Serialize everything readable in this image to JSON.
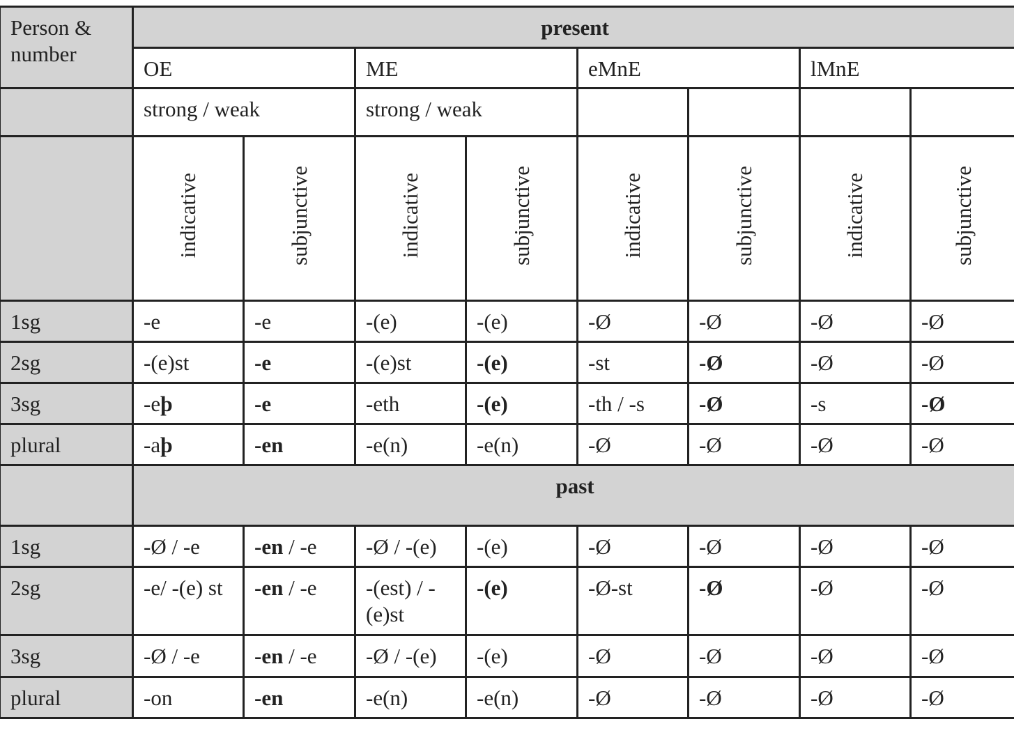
{
  "header": {
    "person_number": "Person & number",
    "present": "present",
    "past": "past",
    "periods": [
      "OE",
      "ME",
      "eMnE",
      "lMnE"
    ],
    "verb_class": [
      "strong / weak",
      "strong / weak"
    ],
    "moods": [
      "indicative",
      "subjunctive",
      "indicative",
      "subjunctive",
      "indicative",
      "subjunctive",
      "indicative",
      "subjunctive"
    ]
  },
  "present_rows": [
    {
      "label": "1sg",
      "cells": [
        [
          {
            "t": "-e"
          }
        ],
        [
          {
            "t": "-e"
          }
        ],
        [
          {
            "t": "-(e)"
          }
        ],
        [
          {
            "t": "-(e)"
          }
        ],
        [
          {
            "t": "-Ø"
          }
        ],
        [
          {
            "t": "-Ø"
          }
        ],
        [
          {
            "t": "-Ø"
          }
        ],
        [
          {
            "t": "-Ø"
          }
        ]
      ]
    },
    {
      "label": "2sg",
      "cells": [
        [
          {
            "t": "-(e)st"
          }
        ],
        [
          {
            "t": "-e",
            "b": true
          }
        ],
        [
          {
            "t": "-(e)st"
          }
        ],
        [
          {
            "t": "-(e)",
            "b": true
          }
        ],
        [
          {
            "t": "-st"
          }
        ],
        [
          {
            "t": "-Ø",
            "b": true
          }
        ],
        [
          {
            "t": "-Ø"
          }
        ],
        [
          {
            "t": "-Ø"
          }
        ]
      ]
    },
    {
      "label": "3sg",
      "cells": [
        [
          {
            "t": "-e"
          },
          {
            "t": "þ",
            "b": true
          }
        ],
        [
          {
            "t": "-e",
            "b": true
          }
        ],
        [
          {
            "t": "-eth"
          }
        ],
        [
          {
            "t": "-(e)",
            "b": true
          }
        ],
        [
          {
            "t": "-th / -s"
          }
        ],
        [
          {
            "t": "-Ø",
            "b": true
          }
        ],
        [
          {
            "t": "-s"
          }
        ],
        [
          {
            "t": "-Ø",
            "b": true
          }
        ]
      ]
    },
    {
      "label": "plural",
      "cells": [
        [
          {
            "t": "-a"
          },
          {
            "t": "þ",
            "b": true
          }
        ],
        [
          {
            "t": "-en",
            "b": true
          }
        ],
        [
          {
            "t": "-e(n)"
          }
        ],
        [
          {
            "t": "-e(n)"
          }
        ],
        [
          {
            "t": "-Ø"
          }
        ],
        [
          {
            "t": "-Ø"
          }
        ],
        [
          {
            "t": "-Ø"
          }
        ],
        [
          {
            "t": "-Ø"
          }
        ]
      ]
    }
  ],
  "past_rows": [
    {
      "label": "1sg",
      "cells": [
        [
          {
            "t": "-Ø / -e"
          }
        ],
        [
          {
            "t": "-en",
            "b": true
          },
          {
            "t": " / -e"
          }
        ],
        [
          {
            "t": "-Ø / -(e)"
          }
        ],
        [
          {
            "t": "-(e)"
          }
        ],
        [
          {
            "t": "-Ø"
          }
        ],
        [
          {
            "t": "-Ø"
          }
        ],
        [
          {
            "t": "-Ø"
          }
        ],
        [
          {
            "t": "-Ø"
          }
        ]
      ]
    },
    {
      "label": "2sg",
      "cells": [
        [
          {
            "t": "-e/ -(e) st"
          }
        ],
        [
          {
            "t": "-en",
            "b": true
          },
          {
            "t": " / -e"
          }
        ],
        [
          {
            "t": "-(est) / -(e)st"
          }
        ],
        [
          {
            "t": "-(e)",
            "b": true
          }
        ],
        [
          {
            "t": "-Ø-st"
          }
        ],
        [
          {
            "t": "-Ø",
            "b": true
          }
        ],
        [
          {
            "t": "-Ø"
          }
        ],
        [
          {
            "t": "-Ø"
          }
        ]
      ]
    },
    {
      "label": "3sg",
      "cells": [
        [
          {
            "t": "-Ø / -e"
          }
        ],
        [
          {
            "t": "-en",
            "b": true
          },
          {
            "t": " / -e"
          }
        ],
        [
          {
            "t": "-Ø / -(e)"
          }
        ],
        [
          {
            "t": "-(e)"
          }
        ],
        [
          {
            "t": "-Ø"
          }
        ],
        [
          {
            "t": "-Ø"
          }
        ],
        [
          {
            "t": "-Ø"
          }
        ],
        [
          {
            "t": "-Ø"
          }
        ]
      ]
    },
    {
      "label": "plural",
      "cells": [
        [
          {
            "t": "-on"
          }
        ],
        [
          {
            "t": "-en",
            "b": true
          }
        ],
        [
          {
            "t": "-e(n)"
          }
        ],
        [
          {
            "t": "-e(n)"
          }
        ],
        [
          {
            "t": "-Ø"
          }
        ],
        [
          {
            "t": "-Ø"
          }
        ],
        [
          {
            "t": "-Ø"
          }
        ],
        [
          {
            "t": "-Ø"
          }
        ]
      ]
    }
  ],
  "colors": {
    "header_bg": "#d3d3d3",
    "border": "#222222"
  }
}
